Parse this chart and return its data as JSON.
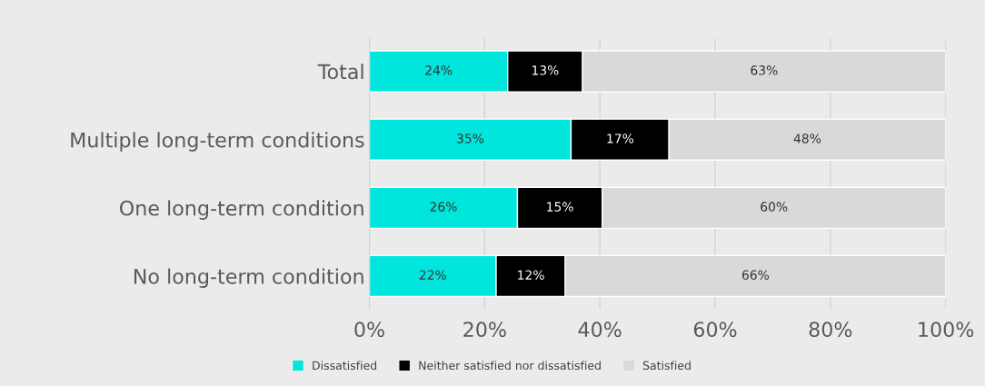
{
  "chart_data": {
    "type": "bar",
    "orientation": "horizontal",
    "stacked": true,
    "categories": [
      "Total",
      "Multiple long-term conditions",
      "One long-term condition",
      "No long-term condition"
    ],
    "series": [
      {
        "name": "Dissatisfied",
        "color": "#00e6dc",
        "values": [
          24,
          35,
          25.7,
          22
        ],
        "value_labels": [
          "24%",
          "35%",
          "26%",
          "22%"
        ]
      },
      {
        "name": "Neither satisfied nor dissatisfied",
        "color": "#000000",
        "values": [
          13,
          17,
          14.7,
          12
        ],
        "value_labels": [
          "13%",
          "17%",
          "15%",
          "12%"
        ]
      },
      {
        "name": "Satisfied",
        "color": "#d9d9d9",
        "values": [
          63,
          48,
          59.6,
          66
        ],
        "value_labels": [
          "63%",
          "48%",
          "60%",
          "66%"
        ]
      }
    ],
    "xlim": [
      0,
      100
    ],
    "xticks": [
      {
        "value": 0,
        "label": "0%"
      },
      {
        "value": 20,
        "label": "20%"
      },
      {
        "value": 40,
        "label": "40%"
      },
      {
        "value": 60,
        "label": "60%"
      },
      {
        "value": 80,
        "label": "80%"
      },
      {
        "value": 100,
        "label": "100%"
      }
    ],
    "grid": "x",
    "legend": "bottom"
  }
}
